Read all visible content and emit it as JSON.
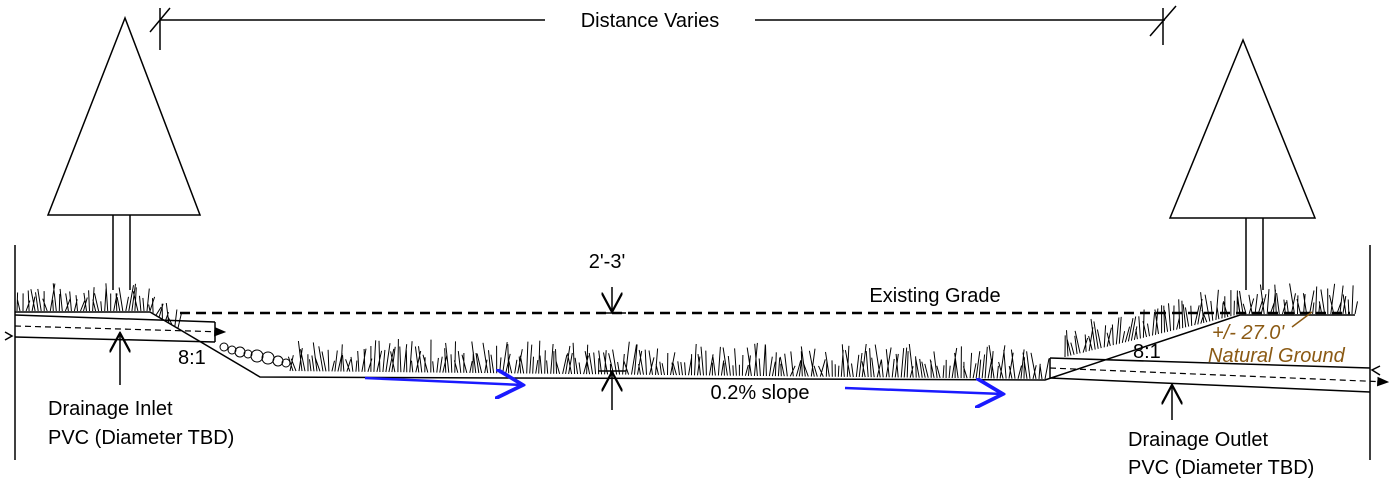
{
  "dimension": {
    "span": "Distance Varies",
    "depth": "2'-3'"
  },
  "labels": {
    "existing_grade": "Existing Grade",
    "slope_left": "8:1",
    "slope_right": "8:1",
    "channel_slope": "0.2% slope",
    "natural_ground_height": "+/- 27.0'",
    "natural_ground": "Natural Ground"
  },
  "inlet": {
    "title": "Drainage Inlet",
    "detail": "PVC (Diameter TBD)"
  },
  "outlet": {
    "title": "Drainage Outlet",
    "detail": "PVC (Diameter TBD)"
  }
}
